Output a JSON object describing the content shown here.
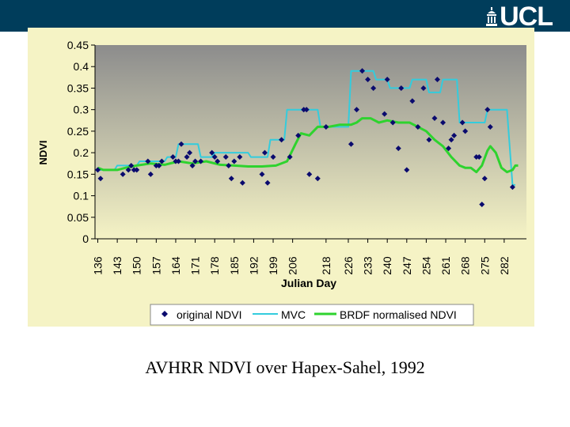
{
  "header": {
    "logo_text": "UCL",
    "bar_color": "#003d5b"
  },
  "caption": "AVHRR NDVI over Hapex-Sahel, 1992",
  "chart_data": {
    "type": "line",
    "title": "",
    "xlabel": "Julian Day",
    "ylabel": "NDVI",
    "ylim": [
      0,
      0.45
    ],
    "xlim": [
      135,
      290
    ],
    "y_ticks": [
      "0",
      "0.05",
      "0.1",
      "0.15",
      "0.2",
      "0.25",
      "0.3",
      "0.35",
      "0.4",
      "0.45"
    ],
    "y_tick_values": [
      0,
      0.05,
      0.1,
      0.15,
      0.2,
      0.25,
      0.3,
      0.35,
      0.4,
      0.45
    ],
    "x_ticks": [
      "136",
      "143",
      "150",
      "157",
      "164",
      "171",
      "178",
      "185",
      "192",
      "199",
      "206",
      "218",
      "226",
      "233",
      "240",
      "247",
      "254",
      "261",
      "268",
      "275",
      "282"
    ],
    "x_tick_values": [
      136,
      143,
      150,
      157,
      164,
      171,
      178,
      185,
      192,
      199,
      206,
      218,
      226,
      233,
      240,
      247,
      254,
      261,
      268,
      275,
      282
    ],
    "grid": false,
    "legend_position": "bottom",
    "plot_background": "#969696",
    "figure_background": "#f5f3c5",
    "series": [
      {
        "name": "original NDVI",
        "kind": "scatter",
        "color": "#0a0a6e",
        "points": [
          [
            136,
            0.16
          ],
          [
            137,
            0.14
          ],
          [
            145,
            0.15
          ],
          [
            147,
            0.16
          ],
          [
            148,
            0.17
          ],
          [
            149,
            0.16
          ],
          [
            150,
            0.16
          ],
          [
            154,
            0.18
          ],
          [
            155,
            0.15
          ],
          [
            157,
            0.17
          ],
          [
            158,
            0.17
          ],
          [
            159,
            0.18
          ],
          [
            163,
            0.19
          ],
          [
            164,
            0.18
          ],
          [
            165,
            0.18
          ],
          [
            166,
            0.22
          ],
          [
            168,
            0.19
          ],
          [
            169,
            0.2
          ],
          [
            170,
            0.17
          ],
          [
            171,
            0.18
          ],
          [
            173,
            0.18
          ],
          [
            177,
            0.2
          ],
          [
            178,
            0.19
          ],
          [
            179,
            0.18
          ],
          [
            182,
            0.19
          ],
          [
            183,
            0.17
          ],
          [
            184,
            0.14
          ],
          [
            185,
            0.18
          ],
          [
            187,
            0.19
          ],
          [
            188,
            0.13
          ],
          [
            195,
            0.15
          ],
          [
            196,
            0.2
          ],
          [
            197,
            0.13
          ],
          [
            199,
            0.19
          ],
          [
            202,
            0.23
          ],
          [
            205,
            0.19
          ],
          [
            208,
            0.24
          ],
          [
            210,
            0.3
          ],
          [
            211,
            0.3
          ],
          [
            212,
            0.15
          ],
          [
            215,
            0.14
          ],
          [
            218,
            0.26
          ],
          [
            227,
            0.22
          ],
          [
            229,
            0.3
          ],
          [
            231,
            0.39
          ],
          [
            233,
            0.37
          ],
          [
            235,
            0.35
          ],
          [
            239,
            0.29
          ],
          [
            240,
            0.37
          ],
          [
            242,
            0.27
          ],
          [
            244,
            0.21
          ],
          [
            245,
            0.35
          ],
          [
            247,
            0.16
          ],
          [
            249,
            0.32
          ],
          [
            251,
            0.26
          ],
          [
            253,
            0.35
          ],
          [
            255,
            0.23
          ],
          [
            257,
            0.28
          ],
          [
            258,
            0.37
          ],
          [
            260,
            0.27
          ],
          [
            262,
            0.21
          ],
          [
            263,
            0.23
          ],
          [
            264,
            0.24
          ],
          [
            267,
            0.27
          ],
          [
            268,
            0.25
          ],
          [
            272,
            0.19
          ],
          [
            273,
            0.19
          ],
          [
            274,
            0.08
          ],
          [
            275,
            0.14
          ],
          [
            276,
            0.3
          ],
          [
            277,
            0.26
          ],
          [
            285,
            0.12
          ]
        ]
      },
      {
        "name": "MVC",
        "kind": "line",
        "color": "#33ccdd",
        "points": [
          [
            136,
            0.16
          ],
          [
            142,
            0.16
          ],
          [
            143,
            0.17
          ],
          [
            150,
            0.17
          ],
          [
            151,
            0.18
          ],
          [
            160,
            0.18
          ],
          [
            161,
            0.19
          ],
          [
            164,
            0.19
          ],
          [
            165,
            0.22
          ],
          [
            172,
            0.22
          ],
          [
            173,
            0.19
          ],
          [
            177,
            0.19
          ],
          [
            178,
            0.2
          ],
          [
            190,
            0.2
          ],
          [
            191,
            0.19
          ],
          [
            197,
            0.19
          ],
          [
            198,
            0.23
          ],
          [
            203,
            0.23
          ],
          [
            204,
            0.3
          ],
          [
            215,
            0.3
          ],
          [
            216,
            0.26
          ],
          [
            226,
            0.26
          ],
          [
            227,
            0.39
          ],
          [
            235,
            0.39
          ],
          [
            236,
            0.37
          ],
          [
            240,
            0.37
          ],
          [
            241,
            0.35
          ],
          [
            248,
            0.35
          ],
          [
            249,
            0.37
          ],
          [
            254,
            0.37
          ],
          [
            255,
            0.34
          ],
          [
            259,
            0.34
          ],
          [
            260,
            0.37
          ],
          [
            265,
            0.37
          ],
          [
            266,
            0.27
          ],
          [
            275,
            0.27
          ],
          [
            276,
            0.3
          ],
          [
            283,
            0.3
          ],
          [
            285,
            0.125
          ],
          [
            286,
            0.125
          ]
        ]
      },
      {
        "name": "BRDF normalised NDVI",
        "kind": "line",
        "color": "#2ed32e",
        "points": [
          [
            136,
            0.165
          ],
          [
            138,
            0.16
          ],
          [
            143,
            0.16
          ],
          [
            146,
            0.165
          ],
          [
            150,
            0.17
          ],
          [
            155,
            0.175
          ],
          [
            160,
            0.172
          ],
          [
            165,
            0.18
          ],
          [
            170,
            0.175
          ],
          [
            175,
            0.18
          ],
          [
            180,
            0.172
          ],
          [
            185,
            0.17
          ],
          [
            190,
            0.168
          ],
          [
            195,
            0.168
          ],
          [
            200,
            0.17
          ],
          [
            204,
            0.18
          ],
          [
            207,
            0.22
          ],
          [
            209,
            0.245
          ],
          [
            212,
            0.24
          ],
          [
            215,
            0.26
          ],
          [
            219,
            0.26
          ],
          [
            223,
            0.265
          ],
          [
            227,
            0.265
          ],
          [
            229,
            0.27
          ],
          [
            231,
            0.28
          ],
          [
            234,
            0.28
          ],
          [
            237,
            0.27
          ],
          [
            240,
            0.275
          ],
          [
            244,
            0.27
          ],
          [
            248,
            0.27
          ],
          [
            251,
            0.26
          ],
          [
            254,
            0.25
          ],
          [
            257,
            0.23
          ],
          [
            260,
            0.215
          ],
          [
            263,
            0.19
          ],
          [
            266,
            0.17
          ],
          [
            268,
            0.165
          ],
          [
            270,
            0.165
          ],
          [
            272,
            0.155
          ],
          [
            274,
            0.17
          ],
          [
            276,
            0.205
          ],
          [
            277,
            0.215
          ],
          [
            279,
            0.2
          ],
          [
            281,
            0.165
          ],
          [
            283,
            0.155
          ],
          [
            285,
            0.16
          ],
          [
            286,
            0.17
          ],
          [
            287,
            0.17
          ]
        ]
      }
    ]
  }
}
